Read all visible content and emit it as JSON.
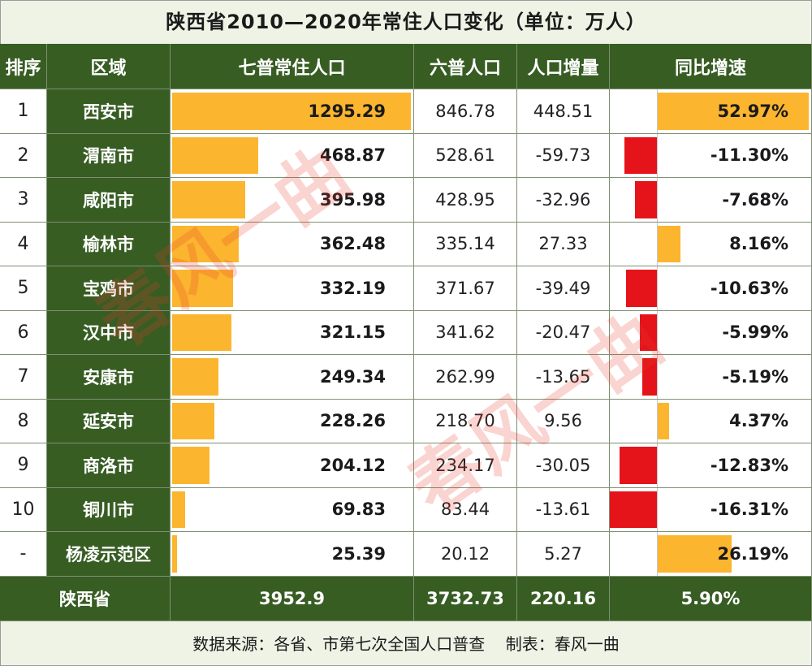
{
  "title": "陕西省2010—2020年常住人口变化（单位：万人）",
  "headers": {
    "rank": "排序",
    "region": "区域",
    "census7": "七普常住人口",
    "census6": "六普人口",
    "increase": "人口增量",
    "growth": "同比增速"
  },
  "rows": [
    {
      "rank": "1",
      "region": "西安市",
      "census7": "1295.29",
      "census6": "846.78",
      "increase": "448.51",
      "growth": "52.97%"
    },
    {
      "rank": "2",
      "region": "渭南市",
      "census7": "468.87",
      "census6": "528.61",
      "increase": "-59.73",
      "growth": "-11.30%"
    },
    {
      "rank": "3",
      "region": "咸阳市",
      "census7": "395.98",
      "census6": "428.95",
      "increase": "-32.96",
      "growth": "-7.68%"
    },
    {
      "rank": "4",
      "region": "榆林市",
      "census7": "362.48",
      "census6": "335.14",
      "increase": "27.33",
      "growth": "8.16%"
    },
    {
      "rank": "5",
      "region": "宝鸡市",
      "census7": "332.19",
      "census6": "371.67",
      "increase": "-39.49",
      "growth": "-10.63%"
    },
    {
      "rank": "6",
      "region": "汉中市",
      "census7": "321.15",
      "census6": "341.62",
      "increase": "-20.47",
      "growth": "-5.99%"
    },
    {
      "rank": "7",
      "region": "安康市",
      "census7": "249.34",
      "census6": "262.99",
      "increase": "-13.65",
      "growth": "-5.19%"
    },
    {
      "rank": "8",
      "region": "延安市",
      "census7": "228.26",
      "census6": "218.70",
      "increase": "9.56",
      "growth": "4.37%"
    },
    {
      "rank": "9",
      "region": "商洛市",
      "census7": "204.12",
      "census6": "234.17",
      "increase": "-30.05",
      "growth": "-12.83%"
    },
    {
      "rank": "10",
      "region": "铜川市",
      "census7": "69.83",
      "census6": "83.44",
      "increase": "-13.61",
      "growth": "-16.31%"
    },
    {
      "rank": "-",
      "region": "杨凌示范区",
      "census7": "25.39",
      "census6": "20.12",
      "increase": "5.27",
      "growth": "26.19%"
    }
  ],
  "total": {
    "region": "陕西省",
    "census7": "3952.9",
    "census6": "3732.73",
    "increase": "220.16",
    "growth": "5.90%"
  },
  "footer": {
    "source": "数据来源：各省、市第七次全国人口普查",
    "author": "制表：春风一曲"
  },
  "watermark": "春风一曲",
  "colors": {
    "header_bg": "#375d23",
    "bar_positive": "#fbb52f",
    "bar_negative": "#e5141a",
    "background": "#eef3e6"
  },
  "chart_data": {
    "type": "table",
    "columns": [
      "排序",
      "区域",
      "七普常住人口",
      "六普人口",
      "人口增量",
      "同比增速"
    ],
    "census7_values": [
      1295.29,
      468.87,
      395.98,
      362.48,
      332.19,
      321.15,
      249.34,
      228.26,
      204.12,
      69.83,
      25.39
    ],
    "growth_values": [
      52.97,
      -11.3,
      -7.68,
      8.16,
      -10.63,
      -5.99,
      -5.19,
      4.37,
      -12.83,
      -16.31,
      26.19
    ],
    "census7_max": 1295.29,
    "growth_positive_max": 52.97,
    "growth_negative_max": 16.31
  }
}
